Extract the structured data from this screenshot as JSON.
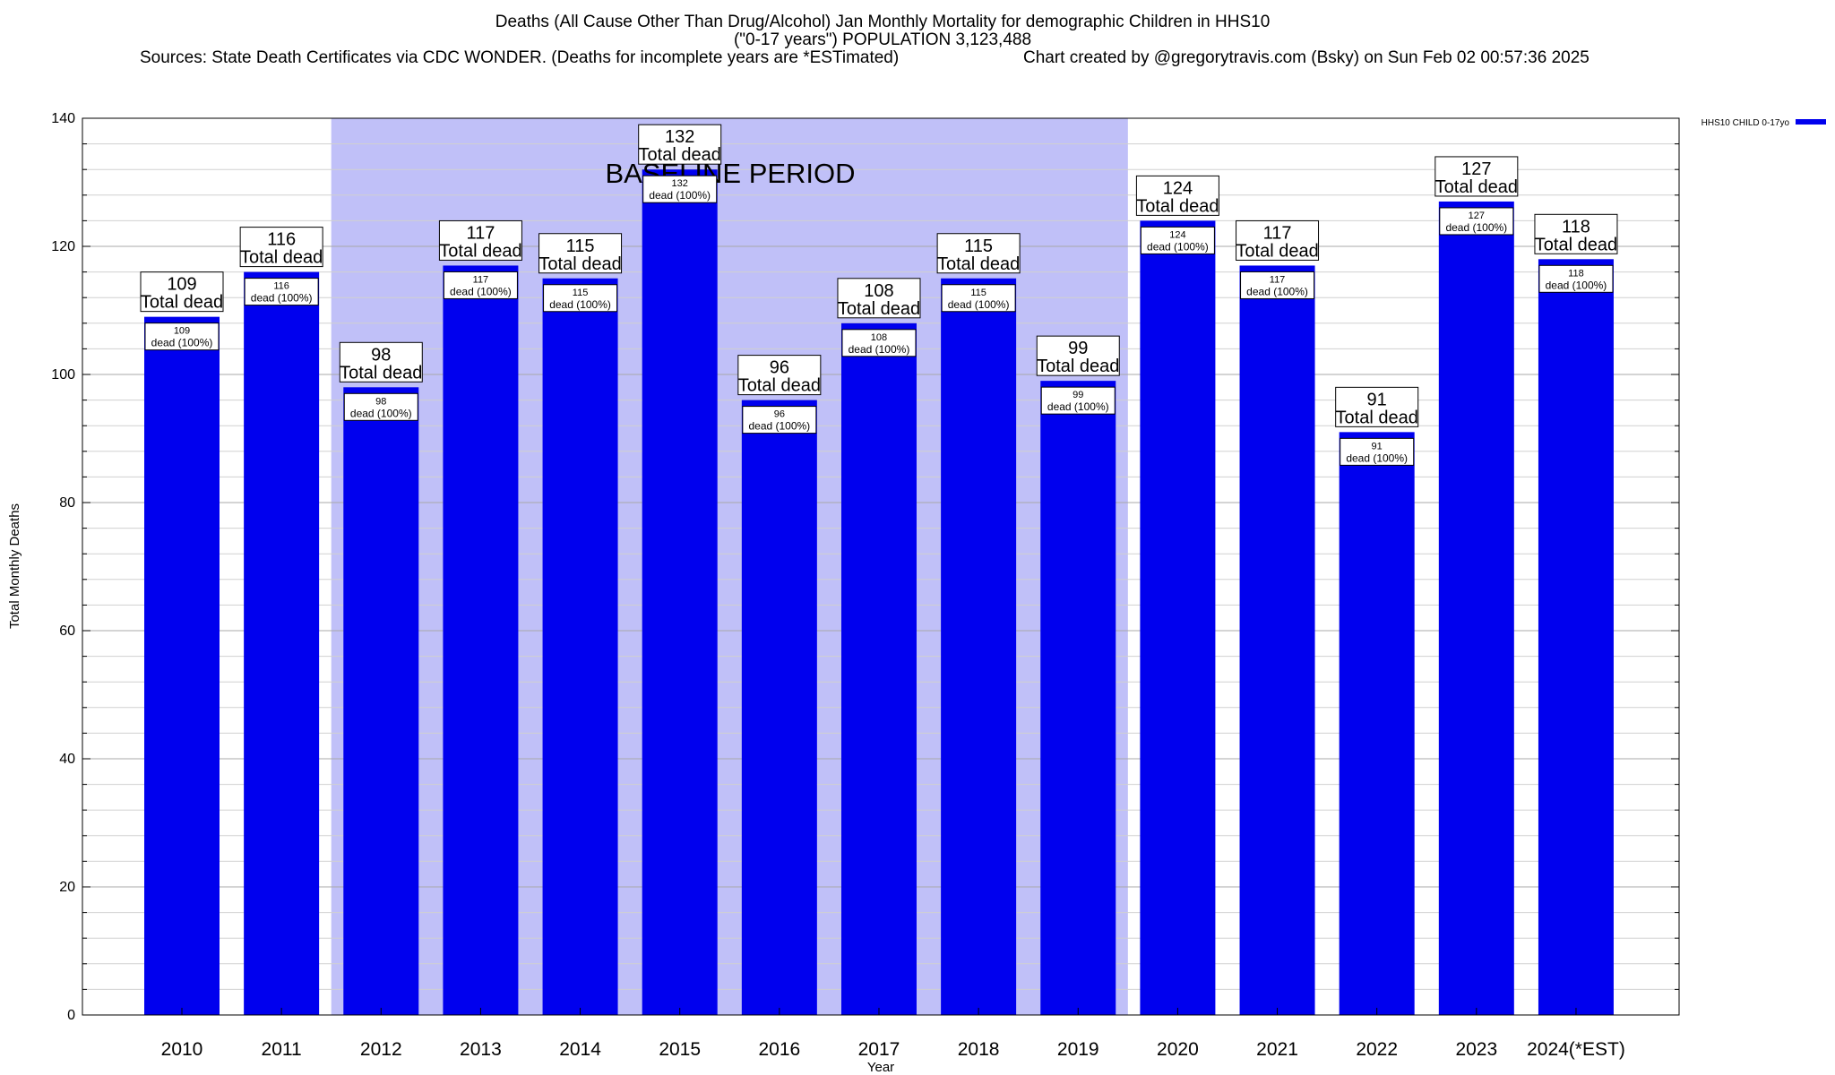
{
  "chart_data": {
    "type": "bar",
    "title_lines": [
      "Deaths (All Cause Other Than Drug/Alcohol) Jan Monthly Mortality for demographic Children in HHS10",
      "(\"0-17 years\") POPULATION 3,123,488"
    ],
    "source_text": "Sources: State Death Certificates via CDC WONDER. (Deaths for incomplete years are *ESTimated)",
    "credit_text": "Chart created by @gregorytravis.com (Bsky) on Sun Feb 02 00:57:36 2025",
    "xlabel": "Year",
    "ylabel": "Total Monthly Deaths",
    "ylim": [
      0,
      140
    ],
    "y_ticks": [
      0,
      20,
      40,
      60,
      80,
      100,
      120,
      140
    ],
    "grid": true,
    "legend_position": "top-right",
    "categories": [
      "2010",
      "2011",
      "2012",
      "2013",
      "2014",
      "2015",
      "2016",
      "2017",
      "2018",
      "2019",
      "2020",
      "2021",
      "2022",
      "2023",
      "2024(*EST)"
    ],
    "series": [
      {
        "name": "HHS10 CHILD 0-17yo",
        "color": "#0000ee",
        "values": [
          109,
          116,
          98,
          117,
          115,
          132,
          96,
          108,
          115,
          99,
          124,
          117,
          91,
          127,
          118
        ]
      }
    ],
    "annotation_total_suffix": "Total dead",
    "annotation_inner_suffix": "dead (100%)",
    "baseline": {
      "label": "BASELINE PERIOD",
      "start": "2012",
      "end": "2019",
      "color": "#c0c0f8"
    }
  }
}
